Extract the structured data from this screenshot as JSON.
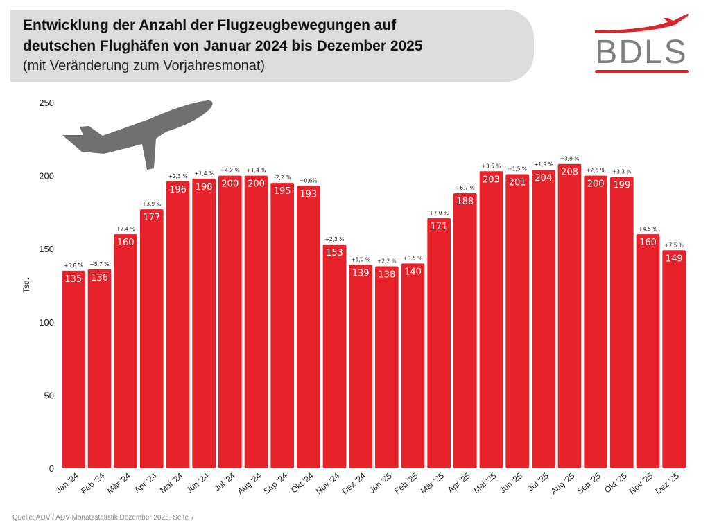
{
  "header": {
    "title_line1": "Entwicklung der Anzahl der Flugzeugbewegungen auf",
    "title_line2": "deutschen Flughäfen von Januar 2024 bis Dezember 2025",
    "subtitle": "(mit Veränderung zum Vorjahresmonat)"
  },
  "logo": {
    "text": "BDLS"
  },
  "source": "Quelle: ADV / ADV-Monatsstatistik Dezember 2025, Seite 7",
  "colors": {
    "bar": "#e8222a",
    "plane": "#707070",
    "logo_red": "#d7262c"
  },
  "chart_data": {
    "type": "bar",
    "title": "Entwicklung der Anzahl der Flugzeugbewegungen auf deutschen Flughäfen von Januar 2024 bis Dezember 2025",
    "xlabel": "",
    "ylabel": "Tsd.",
    "ylim": [
      0,
      250
    ],
    "yticks": [
      0,
      50,
      100,
      150,
      200,
      250
    ],
    "categories": [
      "Jan '24",
      "Feb '24",
      "Mär '24",
      "Apr '24",
      "Mai '24",
      "Jun '24",
      "Jul '24",
      "Aug '24",
      "Sep '24",
      "Okt '24",
      "Nov '24",
      "Dez '24",
      "Jan '25",
      "Feb '25",
      "Mär '25",
      "Apr '25",
      "Mai '25",
      "Jun '25",
      "Jul '25",
      "Aug '25",
      "Sep '25",
      "Okt '25",
      "Nov '25",
      "Dez '25"
    ],
    "values": [
      135,
      136,
      160,
      177,
      196,
      198,
      200,
      200,
      195,
      193,
      153,
      139,
      138,
      140,
      171,
      188,
      203,
      201,
      204,
      208,
      200,
      199,
      160,
      149
    ],
    "changes": [
      "+5,8 %",
      "+5,7 %",
      "+7,4 %",
      "+3,9 %",
      "+2,3 %",
      "+1,4 %",
      "+4,2 %",
      "+1,4 %",
      "-2,2 %",
      "+0,6%",
      "+2,3 %",
      "+5,0 %",
      "+2,2 %",
      "+3,5 %",
      "+7,0 %",
      "+6,7 %",
      "+3,5 %",
      "+1,5 %",
      "+1,9 %",
      "+3,9 %",
      "+2,5 %",
      "+3,3 %",
      "+4,5 %",
      "+7,5 %"
    ],
    "grid": false
  }
}
